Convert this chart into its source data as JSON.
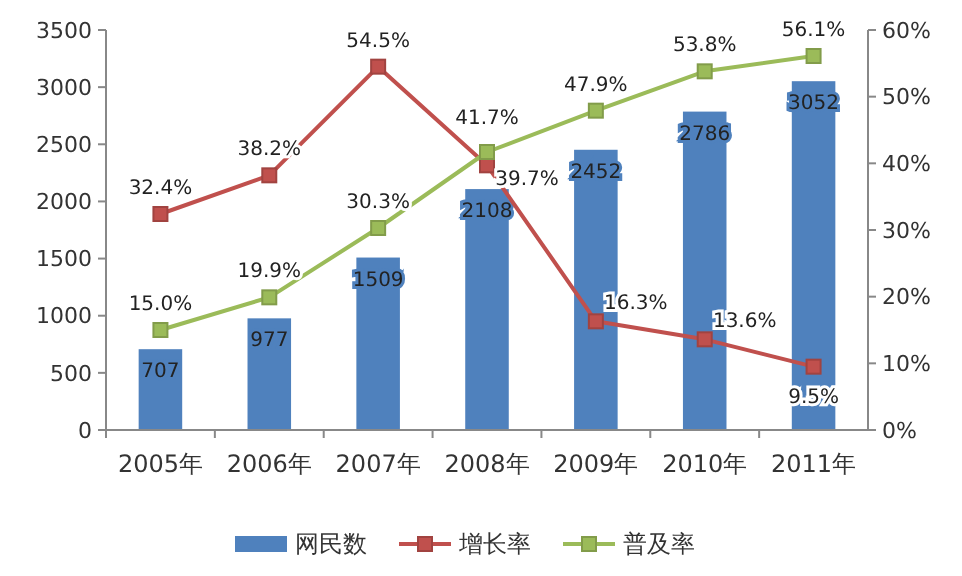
{
  "chart_data": {
    "type": "bar",
    "categories": [
      "2005年",
      "2006年",
      "2007年",
      "2008年",
      "2009年",
      "2010年",
      "2011年"
    ],
    "series": [
      {
        "name": "网民数",
        "color": "#4f81bd",
        "values": [
          707,
          977,
          1509,
          2108,
          2452,
          2786,
          3052
        ],
        "value_labels": [
          "707",
          "977",
          "1509",
          "2108",
          "2452",
          "2786",
          "3052"
        ]
      },
      {
        "name": "增长率",
        "type": "line",
        "axis": "y2",
        "color": "#c0504d",
        "values": [
          32.4,
          38.2,
          54.5,
          39.7,
          16.3,
          13.6,
          9.5
        ],
        "value_labels": [
          "32.4%",
          "38.2%",
          "54.5%",
          "39.7%",
          "16.3%",
          "13.6%",
          "9.5%"
        ]
      },
      {
        "name": "普及率",
        "type": "line",
        "axis": "y2",
        "color": "#9bbb59",
        "values": [
          15.0,
          19.9,
          30.3,
          41.7,
          47.9,
          53.8,
          56.1
        ],
        "value_labels": [
          "15.0%",
          "19.9%",
          "30.3%",
          "41.7%",
          "47.9%",
          "53.8%",
          "56.1%"
        ]
      }
    ],
    "ylim": [
      0,
      3500
    ],
    "yticks": [
      0,
      500,
      1000,
      1500,
      2000,
      2500,
      3000,
      3500
    ],
    "y2lim": [
      0,
      60
    ],
    "y2ticks": [
      {
        "value": 0,
        "label": "0%"
      },
      {
        "value": 10,
        "label": "10%"
      },
      {
        "value": 20,
        "label": "20%"
      },
      {
        "value": 30,
        "label": "30%"
      },
      {
        "value": 40,
        "label": "40%"
      },
      {
        "value": 50,
        "label": "50%"
      },
      {
        "value": 60,
        "label": "60%"
      }
    ],
    "legend": "bottom",
    "marker": "square",
    "grid": false
  }
}
